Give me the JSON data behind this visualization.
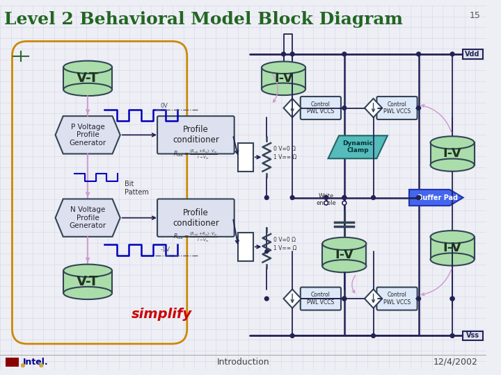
{
  "title": "Level 2 Behavioral Model Block Diagram",
  "slide_number": "15",
  "bg_color": "#eeeef5",
  "title_color": "#226622",
  "grid_color": "#d0d8e8",
  "footer_left": "Introduction",
  "footer_right": "12/4/2002",
  "vdd_label": "Vdd",
  "vss_label": "Vss",
  "simplify_color": "#cc0000",
  "simplify_text": "simplify",
  "buffer_pad_color": "#4466ee",
  "dynamic_clamp_color": "#55bbbb",
  "cylinder_fill": "#aaddaa",
  "cylinder_stroke": "#334455",
  "box_fill": "#dde0ee",
  "box_stroke": "#334455",
  "orange_oval_color": "#cc8800",
  "blue_wave_color": "#0000bb",
  "wire_color": "#222255",
  "dot_color": "#222255",
  "pwl_box_fill": "#dde8f8",
  "pwl_box_stroke": "#334455",
  "lilac_color": "#cc99cc",
  "intel_red": "#880000",
  "intel_blue": "#000088",
  "intel_gold": "#ccaa44",
  "vdd_box_fill": "#e0e4f0",
  "vdd_box_stroke": "#222255"
}
